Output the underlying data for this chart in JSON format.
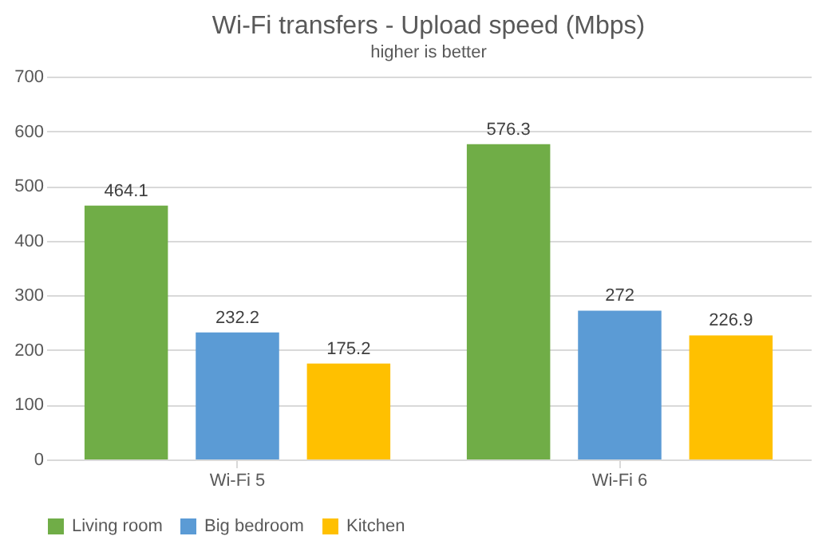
{
  "chart_data": {
    "type": "bar",
    "title": "Wi-Fi transfers - Upload speed (Mbps)",
    "subtitle": "higher is better",
    "categories": [
      "Wi-Fi 5",
      "Wi-Fi 6"
    ],
    "series": [
      {
        "name": "Living room",
        "color": "#70ad47",
        "values": [
          464.1,
          576.3
        ]
      },
      {
        "name": "Big bedroom",
        "color": "#5b9bd5",
        "values": [
          232.2,
          272
        ]
      },
      {
        "name": "Kitchen",
        "color": "#ffc000",
        "values": [
          175.2,
          226.9
        ]
      }
    ],
    "ylim": [
      0,
      700
    ],
    "yticks": [
      0,
      100,
      200,
      300,
      400,
      500,
      600,
      700
    ],
    "grid": "y",
    "legend": "bottom",
    "data_labels": true
  }
}
